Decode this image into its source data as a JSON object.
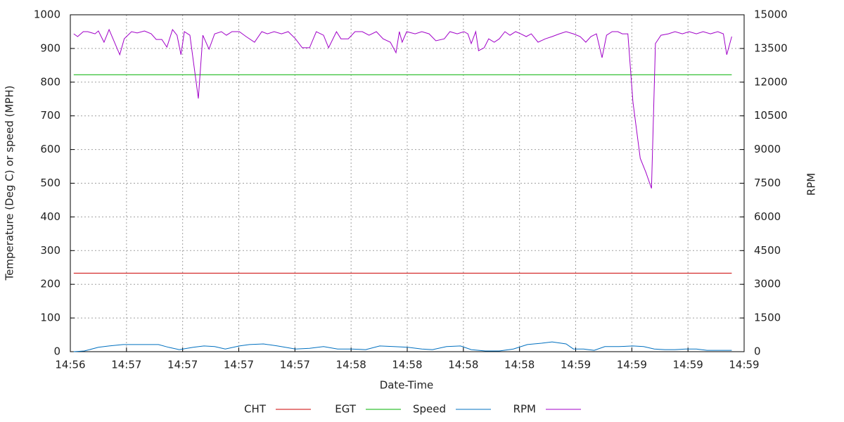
{
  "chart_data": {
    "type": "line",
    "x_label": "Date-Time",
    "y_label": "Temperature (Deg C) or speed (MPH)",
    "y2_label": "RPM",
    "xlim": [
      0,
      12
    ],
    "xticks": [
      {
        "value": 0,
        "label": "14:56"
      },
      {
        "value": 1,
        "label": "14:57"
      },
      {
        "value": 2,
        "label": "14:57"
      },
      {
        "value": 3,
        "label": "14:57"
      },
      {
        "value": 4,
        "label": "14:57"
      },
      {
        "value": 5,
        "label": "14:58"
      },
      {
        "value": 6,
        "label": "14:58"
      },
      {
        "value": 7,
        "label": "14:58"
      },
      {
        "value": 8,
        "label": "14:58"
      },
      {
        "value": 9,
        "label": "14:59"
      },
      {
        "value": 10,
        "label": "14:59"
      },
      {
        "value": 11,
        "label": "14:59"
      },
      {
        "value": 12,
        "label": "14:59"
      }
    ],
    "ylim": [
      0,
      1000
    ],
    "yticks": [
      0,
      100,
      200,
      300,
      400,
      500,
      600,
      700,
      800,
      900,
      1000
    ],
    "y2lim": [
      0,
      15000
    ],
    "y2ticks": [
      0,
      1500,
      3000,
      4500,
      6000,
      7500,
      9000,
      10500,
      12000,
      13500,
      15000
    ],
    "grid": true,
    "legend": "bottom",
    "series": [
      {
        "name": "CHT",
        "color": "#cc0000",
        "x": [
          0.06,
          11.78
        ],
        "values": [
          233,
          233
        ]
      },
      {
        "name": "EGT",
        "color": "#00b000",
        "x": [
          0.06,
          11.78
        ],
        "values": [
          822,
          822
        ]
      },
      {
        "name": "Speed",
        "color": "#0070c0",
        "x": [
          0.06,
          0.25,
          0.5,
          0.69,
          0.94,
          1.25,
          1.57,
          1.75,
          1.94,
          2.19,
          2.38,
          2.57,
          2.76,
          3.01,
          3.19,
          3.44,
          3.69,
          4.01,
          4.26,
          4.51,
          4.76,
          5.01,
          5.26,
          5.51,
          5.76,
          6.01,
          6.26,
          6.45,
          6.7,
          6.95,
          7.14,
          7.39,
          7.64,
          7.89,
          8.14,
          8.39,
          8.58,
          8.83,
          8.96,
          9.14,
          9.33,
          9.52,
          9.77,
          10.02,
          10.21,
          10.4,
          10.59,
          10.77,
          10.96,
          11.15,
          11.34,
          11.59,
          11.78
        ],
        "values": [
          0,
          2,
          13,
          17,
          21,
          21,
          21,
          13,
          6,
          13,
          17,
          15,
          8,
          17,
          21,
          23,
          17,
          8,
          10,
          15,
          8,
          8,
          6,
          17,
          15,
          13,
          8,
          6,
          15,
          17,
          6,
          2,
          2,
          8,
          21,
          25,
          29,
          23,
          8,
          8,
          4,
          15,
          15,
          17,
          15,
          8,
          6,
          6,
          8,
          8,
          4,
          4,
          4
        ]
      },
      {
        "name": "RPM",
        "color": "#a000c8",
        "axis": "y2",
        "x": [
          0.06,
          0.13,
          0.23,
          0.31,
          0.44,
          0.5,
          0.6,
          0.69,
          0.88,
          0.96,
          1.09,
          1.19,
          1.32,
          1.44,
          1.53,
          1.63,
          1.72,
          1.82,
          1.9,
          1.97,
          2.03,
          2.13,
          2.28,
          2.36,
          2.47,
          2.57,
          2.69,
          2.78,
          2.88,
          3.01,
          3.13,
          3.28,
          3.41,
          3.51,
          3.63,
          3.76,
          3.88,
          4.01,
          4.13,
          4.26,
          4.38,
          4.51,
          4.6,
          4.74,
          4.82,
          4.95,
          5.07,
          5.2,
          5.32,
          5.45,
          5.57,
          5.7,
          5.8,
          5.86,
          5.91,
          5.99,
          6.14,
          6.26,
          6.39,
          6.51,
          6.66,
          6.76,
          6.89,
          7.01,
          7.08,
          7.14,
          7.22,
          7.27,
          7.37,
          7.45,
          7.55,
          7.64,
          7.74,
          7.83,
          7.93,
          8.02,
          8.12,
          8.21,
          8.33,
          8.46,
          8.58,
          8.71,
          8.83,
          8.96,
          9.08,
          9.18,
          9.27,
          9.37,
          9.47,
          9.55,
          9.65,
          9.75,
          9.83,
          9.93,
          10.02,
          10.15,
          10.25,
          10.35,
          10.42,
          10.52,
          10.65,
          10.77,
          10.9,
          11.02,
          11.15,
          11.27,
          11.4,
          11.53,
          11.63,
          11.69,
          11.78
        ],
        "values": [
          14150,
          14030,
          14250,
          14250,
          14150,
          14280,
          13780,
          14340,
          13220,
          13930,
          14250,
          14190,
          14280,
          14150,
          13900,
          13900,
          13560,
          14340,
          14090,
          13220,
          14250,
          14090,
          11270,
          14090,
          13470,
          14150,
          14250,
          14090,
          14250,
          14250,
          14030,
          13780,
          14250,
          14150,
          14250,
          14150,
          14250,
          13930,
          13530,
          13530,
          14250,
          14090,
          13530,
          14250,
          13930,
          13930,
          14250,
          14250,
          14090,
          14250,
          13930,
          13780,
          13310,
          14250,
          13780,
          14250,
          14150,
          14250,
          14150,
          13840,
          13930,
          14250,
          14150,
          14250,
          14150,
          13720,
          14250,
          13400,
          13530,
          13930,
          13780,
          13930,
          14250,
          14090,
          14250,
          14150,
          14030,
          14150,
          13780,
          13930,
          14030,
          14150,
          14250,
          14150,
          14030,
          13780,
          14030,
          14150,
          13090,
          14090,
          14250,
          14250,
          14150,
          14150,
          11120,
          8610,
          7990,
          7270,
          13720,
          14090,
          14150,
          14250,
          14150,
          14250,
          14150,
          14250,
          14150,
          14250,
          14150,
          13220,
          14030
        ]
      }
    ]
  }
}
